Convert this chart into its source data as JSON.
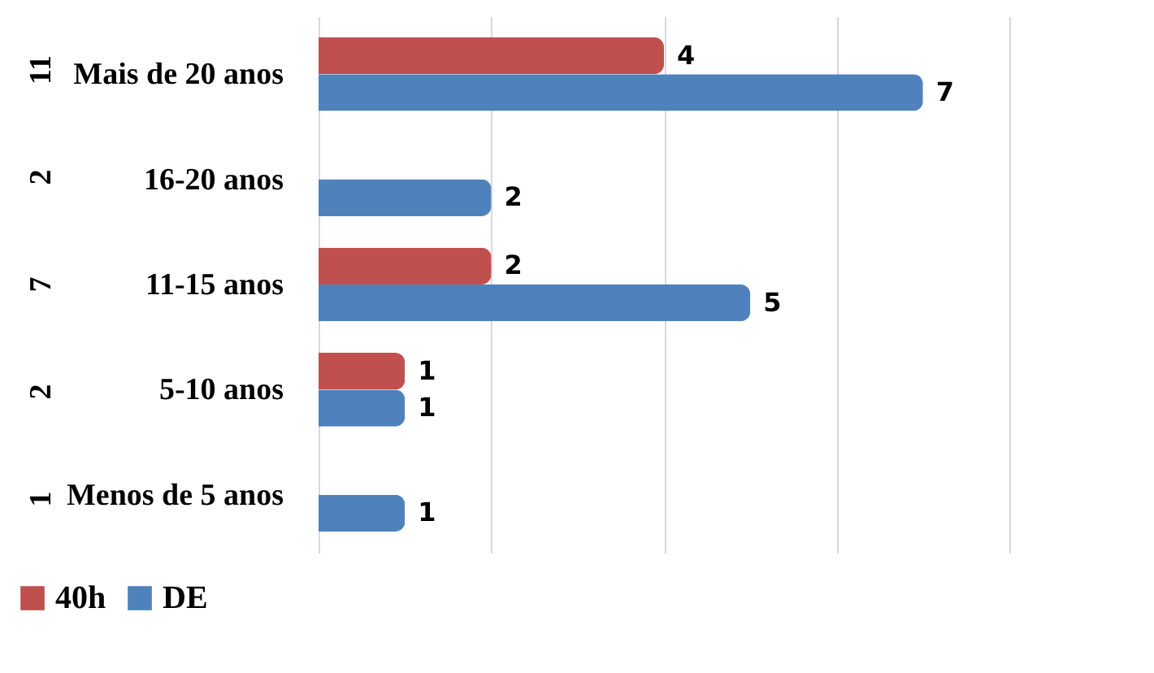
{
  "chart_data": {
    "type": "bar",
    "orientation": "horizontal",
    "categories": [
      "Mais de 20 anos",
      "16-20 anos",
      "11-15 anos",
      "5-10 anos",
      "Menos de 5 anos"
    ],
    "series": [
      {
        "name": "40h",
        "color": "#c0504d",
        "values": [
          4,
          null,
          2,
          1,
          null
        ]
      },
      {
        "name": "DE",
        "color": "#4f81bd",
        "values": [
          7,
          2,
          5,
          1,
          1
        ]
      }
    ],
    "annotations": [
      "11",
      "2",
      "7",
      "2",
      "1"
    ],
    "xlim": [
      0,
      8
    ],
    "xticks": [
      {
        "value": 0,
        "label": null
      },
      {
        "value": 2,
        "label": null
      },
      {
        "value": 4,
        "label": null
      },
      {
        "value": 6,
        "label": null
      },
      {
        "value": 8,
        "label": null
      }
    ],
    "grid": "x",
    "tick_labels": "y",
    "data_labels": true,
    "legend": "bottom"
  }
}
